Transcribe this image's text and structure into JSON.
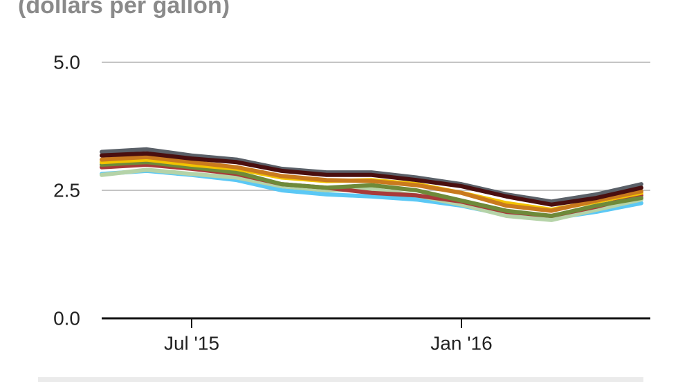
{
  "chart_data": {
    "type": "line",
    "subtitle": "(dollars per gallon)",
    "x": [
      "2015-05",
      "2015-06",
      "2015-07",
      "2015-08",
      "2015-09",
      "2015-10",
      "2015-11",
      "2015-12",
      "2016-01",
      "2016-02",
      "2016-03",
      "2016-04",
      "2016-05"
    ],
    "xlim": [
      "2015-05",
      "2016-05"
    ],
    "xticks": [
      {
        "value": "2015-07",
        "label": "Jul '15"
      },
      {
        "value": "2016-01",
        "label": "Jan '16"
      }
    ],
    "ylim": [
      0,
      5
    ],
    "yticks": [
      {
        "value": 0,
        "label": "0.0"
      },
      2.5,
      {
        "value": 5,
        "label": "5.0"
      }
    ],
    "grid": true,
    "series": [
      {
        "color": "#5bc8f5",
        "values": [
          2.82,
          2.88,
          2.8,
          2.7,
          2.5,
          2.42,
          2.38,
          2.32,
          2.2,
          2.02,
          1.95,
          2.08,
          2.25
        ]
      },
      {
        "color": "#b5d3a8",
        "values": [
          2.8,
          2.9,
          2.82,
          2.75,
          2.58,
          2.5,
          2.52,
          2.4,
          2.22,
          2.0,
          1.92,
          2.12,
          2.32
        ]
      },
      {
        "color": "#a83a3a",
        "values": [
          2.95,
          3.0,
          2.92,
          2.82,
          2.62,
          2.55,
          2.45,
          2.4,
          2.28,
          2.08,
          2.0,
          2.18,
          2.4
        ]
      },
      {
        "color": "#6e8a3a",
        "values": [
          3.0,
          3.05,
          2.95,
          2.85,
          2.62,
          2.55,
          2.6,
          2.5,
          2.3,
          2.1,
          2.0,
          2.2,
          2.35
        ]
      },
      {
        "color": "#f2c200",
        "values": [
          3.05,
          3.1,
          3.0,
          2.92,
          2.75,
          2.68,
          2.7,
          2.62,
          2.45,
          2.25,
          2.12,
          2.28,
          2.45
        ]
      },
      {
        "color": "#c97a1e",
        "values": [
          3.1,
          3.15,
          3.05,
          2.95,
          2.78,
          2.7,
          2.68,
          2.6,
          2.45,
          2.2,
          2.1,
          2.3,
          2.48
        ]
      },
      {
        "color": "#5a6068",
        "values": [
          3.25,
          3.3,
          3.18,
          3.1,
          2.92,
          2.85,
          2.85,
          2.75,
          2.62,
          2.42,
          2.28,
          2.42,
          2.62
        ]
      },
      {
        "color": "#4a0f0f",
        "values": [
          3.18,
          3.22,
          3.12,
          3.05,
          2.88,
          2.8,
          2.8,
          2.7,
          2.58,
          2.38,
          2.22,
          2.35,
          2.55
        ]
      }
    ]
  }
}
